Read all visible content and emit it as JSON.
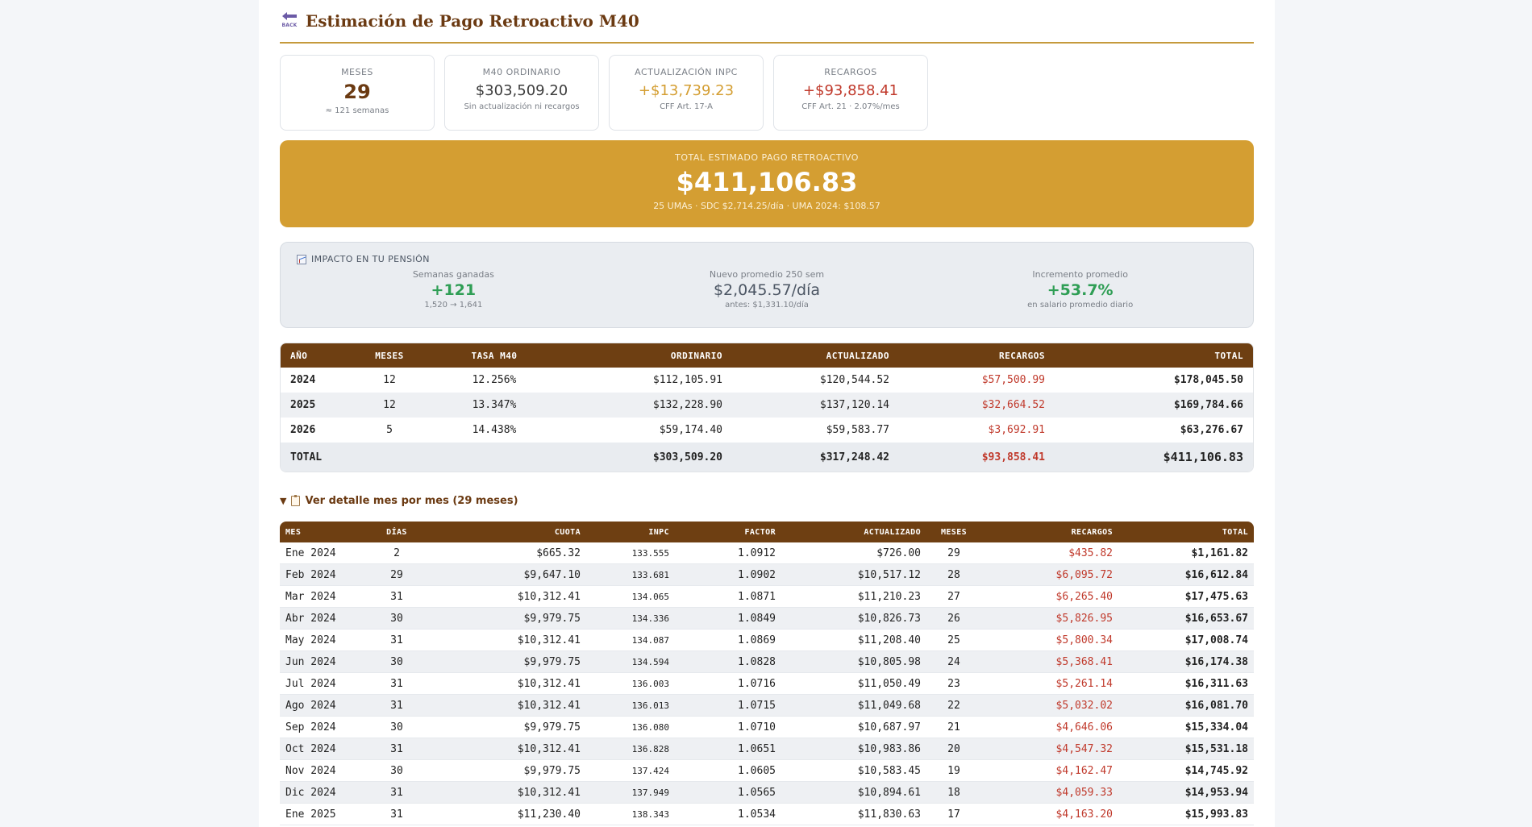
{
  "header": {
    "back_label": "BACK",
    "title": "Estimación de Pago Retroactivo M40"
  },
  "cards": [
    {
      "label": "MESES",
      "value": "29",
      "sub": "≈ 121 semanas"
    },
    {
      "label": "M40 ORDINARIO",
      "value": "$303,509.20",
      "sub": "Sin actualización ni recargos"
    },
    {
      "label": "ACTUALIZACIÓN INPC",
      "value": "+$13,739.23",
      "sub": "CFF Art. 17-A"
    },
    {
      "label": "RECARGOS",
      "value": "+$93,858.41",
      "sub": "CFF Art. 21 · 2.07%/mes"
    }
  ],
  "total": {
    "label": "TOTAL ESTIMADO PAGO RETROACTIVO",
    "value": "$411,106.83",
    "sub": "25 UMAs · SDC $2,714.25/día · UMA 2024: $108.57"
  },
  "impact": {
    "heading": "IMPACTO EN TU PENSIÓN",
    "cols": [
      {
        "label": "Semanas ganadas",
        "value": "+121",
        "sub": "1,520 → 1,641"
      },
      {
        "label": "Nuevo promedio 250 sem",
        "value": "$2,045.57/día",
        "sub": "antes: $1,331.10/día"
      },
      {
        "label": "Incremento promedio",
        "value": "+53.7%",
        "sub": "en salario promedio diario"
      }
    ]
  },
  "annual": {
    "headers": [
      "AÑO",
      "MESES",
      "TASA M40",
      "ORDINARIO",
      "ACTUALIZADO",
      "RECARGOS",
      "TOTAL"
    ],
    "rows": [
      [
        "2024",
        "12",
        "12.256%",
        "$112,105.91",
        "$120,544.52",
        "$57,500.99",
        "$178,045.50"
      ],
      [
        "2025",
        "12",
        "13.347%",
        "$132,228.90",
        "$137,120.14",
        "$32,664.52",
        "$169,784.66"
      ],
      [
        "2026",
        "5",
        "14.438%",
        "$59,174.40",
        "$59,583.77",
        "$3,692.91",
        "$63,276.67"
      ]
    ],
    "total_row": [
      "TOTAL",
      "",
      "",
      "$303,509.20",
      "$317,248.42",
      "$93,858.41",
      "$411,106.83"
    ]
  },
  "detail_toggle": "Ver detalle mes por mes (29 meses)",
  "monthly": {
    "headers": [
      "MES",
      "DÍAS",
      "CUOTA",
      "INPC",
      "FACTOR",
      "ACTUALIZADO",
      "MESES",
      "RECARGOS",
      "TOTAL"
    ],
    "rows": [
      [
        "Ene 2024",
        "2",
        "$665.32",
        "133.555",
        "1.0912",
        "$726.00",
        "29",
        "$435.82",
        "$1,161.82"
      ],
      [
        "Feb 2024",
        "29",
        "$9,647.10",
        "133.681",
        "1.0902",
        "$10,517.12",
        "28",
        "$6,095.72",
        "$16,612.84"
      ],
      [
        "Mar 2024",
        "31",
        "$10,312.41",
        "134.065",
        "1.0871",
        "$11,210.23",
        "27",
        "$6,265.40",
        "$17,475.63"
      ],
      [
        "Abr 2024",
        "30",
        "$9,979.75",
        "134.336",
        "1.0849",
        "$10,826.73",
        "26",
        "$5,826.95",
        "$16,653.67"
      ],
      [
        "May 2024",
        "31",
        "$10,312.41",
        "134.087",
        "1.0869",
        "$11,208.40",
        "25",
        "$5,800.34",
        "$17,008.74"
      ],
      [
        "Jun 2024",
        "30",
        "$9,979.75",
        "134.594",
        "1.0828",
        "$10,805.98",
        "24",
        "$5,368.41",
        "$16,174.38"
      ],
      [
        "Jul 2024",
        "31",
        "$10,312.41",
        "136.003",
        "1.0716",
        "$11,050.49",
        "23",
        "$5,261.14",
        "$16,311.63"
      ],
      [
        "Ago 2024",
        "31",
        "$10,312.41",
        "136.013",
        "1.0715",
        "$11,049.68",
        "22",
        "$5,032.02",
        "$16,081.70"
      ],
      [
        "Sep 2024",
        "30",
        "$9,979.75",
        "136.080",
        "1.0710",
        "$10,687.97",
        "21",
        "$4,646.06",
        "$15,334.04"
      ],
      [
        "Oct 2024",
        "31",
        "$10,312.41",
        "136.828",
        "1.0651",
        "$10,983.86",
        "20",
        "$4,547.32",
        "$15,531.18"
      ],
      [
        "Nov 2024",
        "30",
        "$9,979.75",
        "137.424",
        "1.0605",
        "$10,583.45",
        "19",
        "$4,162.47",
        "$14,745.92"
      ],
      [
        "Dic 2024",
        "31",
        "$10,312.41",
        "137.949",
        "1.0565",
        "$10,894.61",
        "18",
        "$4,059.33",
        "$14,953.94"
      ],
      [
        "Ene 2025",
        "31",
        "$11,230.40",
        "138.343",
        "1.0534",
        "$11,830.63",
        "17",
        "$4,163.20",
        "$15,993.83"
      ]
    ]
  }
}
